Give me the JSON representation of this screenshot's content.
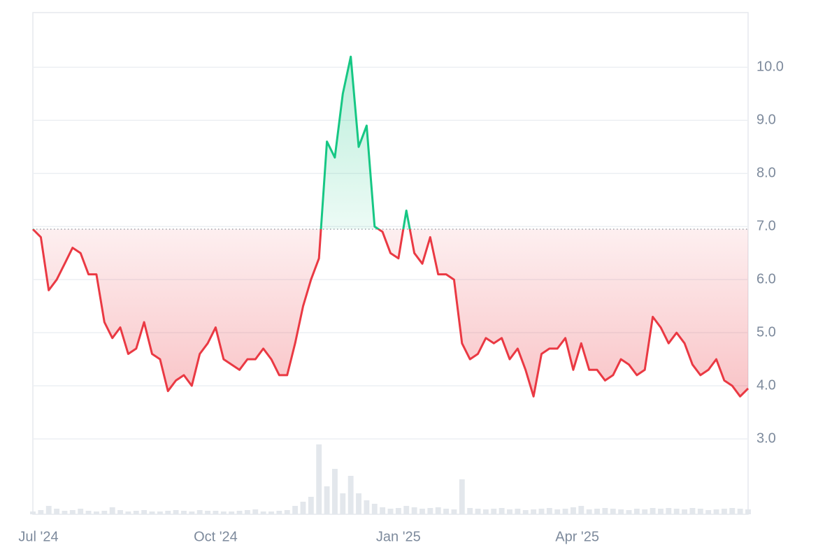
{
  "chart_data": {
    "type": "baseline-line",
    "values": [
      6.95,
      6.8,
      5.8,
      6.0,
      6.3,
      6.6,
      6.5,
      6.1,
      6.1,
      5.2,
      4.9,
      5.1,
      4.6,
      4.7,
      5.2,
      4.6,
      4.5,
      3.9,
      4.1,
      4.2,
      4.0,
      4.6,
      4.8,
      5.1,
      4.5,
      4.4,
      4.3,
      4.5,
      4.5,
      4.7,
      4.5,
      4.2,
      4.2,
      4.8,
      5.5,
      6.0,
      6.4,
      8.6,
      8.3,
      9.5,
      10.2,
      8.5,
      8.9,
      7.0,
      6.9,
      6.5,
      6.4,
      7.3,
      6.5,
      6.3,
      6.8,
      6.1,
      6.1,
      6.0,
      4.8,
      4.5,
      4.6,
      4.9,
      4.8,
      4.9,
      4.5,
      4.7,
      4.3,
      3.8,
      4.6,
      4.7,
      4.7,
      4.9,
      4.3,
      4.8,
      4.3,
      4.3,
      4.1,
      4.2,
      4.5,
      4.4,
      4.2,
      4.3,
      5.3,
      5.1,
      4.8,
      5.0,
      4.8,
      4.4,
      4.2,
      4.3,
      4.5,
      4.1,
      4.0,
      3.8,
      3.95
    ],
    "volume": [
      4,
      6,
      12,
      8,
      5,
      6,
      8,
      5,
      4,
      5,
      10,
      6,
      4,
      5,
      6,
      4,
      4,
      5,
      6,
      5,
      4,
      6,
      5,
      5,
      4,
      4,
      5,
      6,
      7,
      4,
      4,
      5,
      6,
      12,
      18,
      25,
      100,
      40,
      65,
      30,
      55,
      30,
      20,
      15,
      10,
      8,
      9,
      12,
      10,
      8,
      9,
      10,
      8,
      7,
      50,
      9,
      8,
      7,
      8,
      9,
      7,
      8,
      6,
      7,
      8,
      9,
      7,
      8,
      10,
      12,
      7,
      8,
      9,
      8,
      7,
      6,
      8,
      7,
      9,
      8,
      9,
      8,
      7,
      9,
      8,
      6,
      7,
      8,
      9,
      8,
      7
    ],
    "baseline": 6.95,
    "up_color": "#16c784",
    "down_color": "#ea3943",
    "volume_color": "#e3e7ec",
    "grid": true,
    "xlim": [
      0,
      90
    ],
    "xticks": [
      {
        "value": 0,
        "label": "Jul '24"
      },
      {
        "value": 23,
        "label": "Oct '24"
      },
      {
        "value": 46,
        "label": "Jan '25"
      },
      {
        "value": 68.5,
        "label": "Apr '25"
      }
    ],
    "ylim": [
      1.58,
      11.03
    ],
    "yticks": [
      {
        "value": 3,
        "label": "3.0"
      },
      {
        "value": 4,
        "label": "4.0"
      },
      {
        "value": 5,
        "label": "5.0"
      },
      {
        "value": 6,
        "label": "6.0"
      },
      {
        "value": 7,
        "label": "7.0"
      },
      {
        "value": 8,
        "label": "8.0"
      },
      {
        "value": 9,
        "label": "9.0"
      },
      {
        "value": 10,
        "label": "10.0"
      }
    ]
  }
}
